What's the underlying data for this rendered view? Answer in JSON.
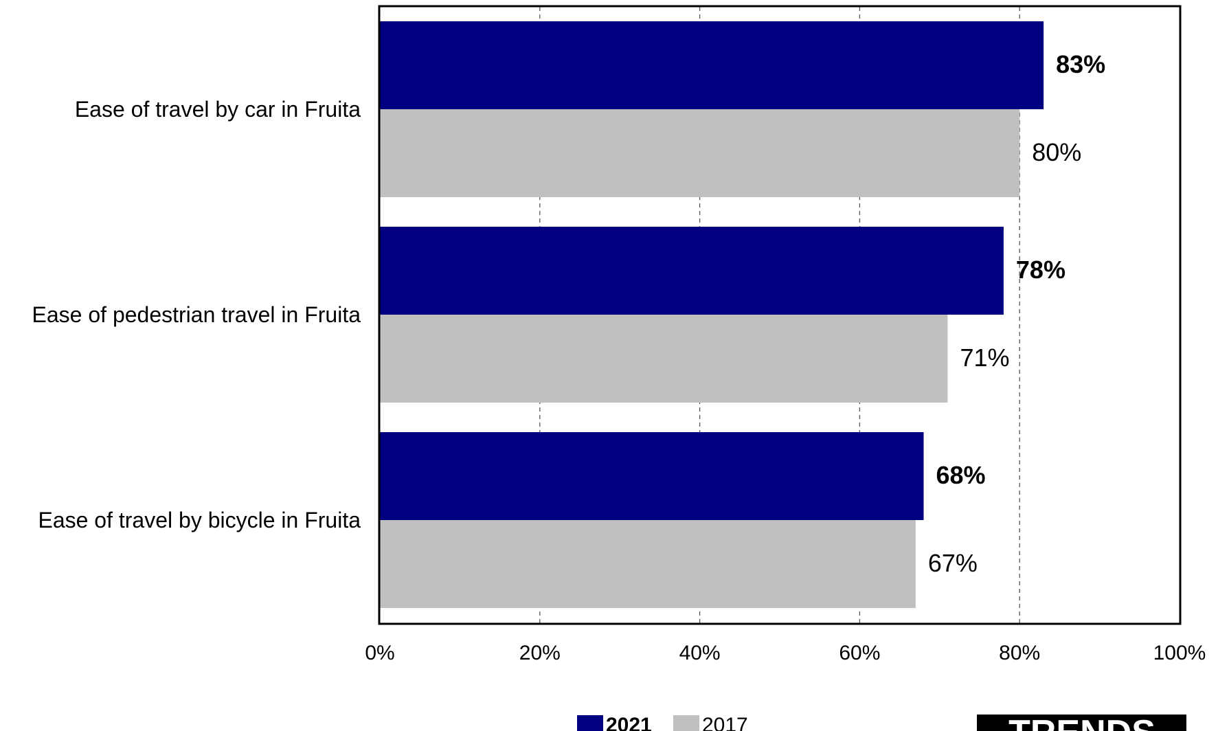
{
  "chart_data": {
    "type": "bar",
    "orientation": "horizontal",
    "categories": [
      "Ease of travel by car in Fruita",
      "Ease of pedestrian travel in Fruita",
      "Ease of travel by bicycle in Fruita"
    ],
    "series": [
      {
        "name": "2021",
        "values": [
          83,
          78,
          68
        ],
        "labels": [
          "83%",
          "78%",
          "68%"
        ],
        "color": "#000080",
        "label_bold": true
      },
      {
        "name": "2017",
        "values": [
          80,
          71,
          67
        ],
        "labels": [
          "80%",
          "71%",
          "67%"
        ],
        "color": "#c0c0c0",
        "label_bold": false
      }
    ],
    "xlim": [
      0,
      100
    ],
    "x_ticks": [
      0,
      20,
      40,
      60,
      80,
      100
    ],
    "x_tick_labels": [
      "0%",
      "20%",
      "40%",
      "60%",
      "80%",
      "100%"
    ],
    "grid": "vertical dashed",
    "legend": "bottom"
  },
  "badge": {
    "text": "TRENDS",
    "color": "#000000",
    "text_color": "#ffffff"
  }
}
